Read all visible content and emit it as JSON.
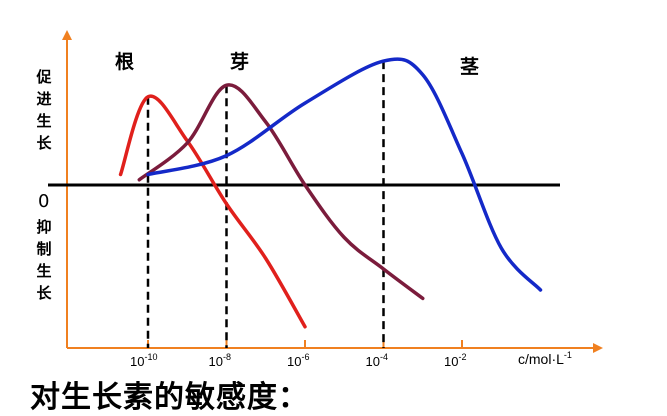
{
  "chart_data": {
    "type": "line",
    "x_scale": "log",
    "x_ticks": [
      {
        "base": "10",
        "exp": "-10",
        "value": 1e-10
      },
      {
        "base": "10",
        "exp": "-8",
        "value": 1e-08
      },
      {
        "base": "10",
        "exp": "-6",
        "value": 1e-06
      },
      {
        "base": "10",
        "exp": "-4",
        "value": 0.0001
      },
      {
        "base": "10",
        "exp": "-2",
        "value": 0.01
      }
    ],
    "xlim": [
      1e-11,
      1
    ],
    "ylim": [
      -1,
      1
    ],
    "xlabel": {
      "prefix": "c/mol·L",
      "exp": "-1"
    },
    "y_positive_label": "促进生长",
    "y_zero_label": "0",
    "y_negative_label": "抑制生长",
    "grid": false,
    "legend": "none",
    "series": [
      {
        "name": "根",
        "color": "#e0201c",
        "x": [
          2e-11,
          1e-10,
          1e-09,
          1e-08,
          1e-07,
          1e-06
        ],
        "y": [
          0.1,
          0.84,
          0.42,
          -0.18,
          -0.7,
          -1.35
        ]
      },
      {
        "name": "芽",
        "color": "#7b1c3c",
        "x": [
          6e-11,
          1e-09,
          1e-08,
          1e-07,
          1e-06,
          1e-05,
          0.0001,
          0.001
        ],
        "y": [
          0.05,
          0.4,
          0.95,
          0.6,
          0.0,
          -0.5,
          -0.8,
          -1.08
        ]
      },
      {
        "name": "茎",
        "color": "#1429c8",
        "x": [
          1e-10,
          1e-08,
          1e-06,
          0.0001,
          0.001,
          0.01,
          0.1,
          1
        ],
        "y": [
          0.1,
          0.28,
          0.78,
          1.18,
          1.05,
          0.3,
          -0.6,
          -1.0
        ]
      }
    ],
    "peak_markers": [
      1e-10,
      1e-08,
      0.0001
    ],
    "colors": {
      "axis": "#f08020",
      "zero_line": "#000000",
      "marker": "#000000"
    }
  },
  "caption": "对生长素的敏感度："
}
